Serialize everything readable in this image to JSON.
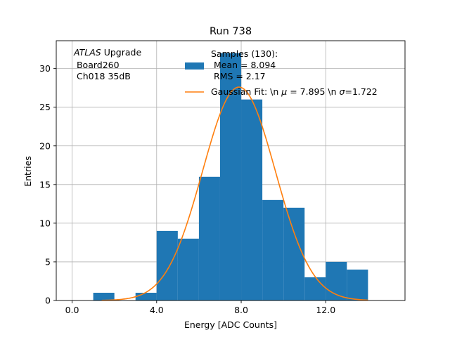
{
  "chart_data": {
    "type": "bar",
    "title": "Run 738",
    "xlabel": "Energy [ADC Counts]",
    "ylabel": "Entries",
    "xlim": [
      -0.75,
      15.75
    ],
    "ylim": [
      0,
      33.6
    ],
    "grid": true,
    "x_ticks": [
      0,
      4,
      8,
      12
    ],
    "x_tick_labels": [
      "0.0",
      "4.0",
      "8.0",
      "12.0"
    ],
    "y_ticks": [
      0,
      5,
      10,
      15,
      20,
      25,
      30
    ],
    "y_tick_labels": [
      "0",
      "5",
      "10",
      "15",
      "20",
      "25",
      "30"
    ],
    "annotation": {
      "italic": "ATLAS",
      "line1_rest": " Upgrade",
      "line2": " Board260",
      "line3": " Ch018 35dB"
    },
    "legend": {
      "placement": "top-right",
      "entries": [
        {
          "kind": "patch",
          "lines": [
            "Samples (130):",
            " Mean = 8.094",
            " RMS = 2.17"
          ]
        },
        {
          "kind": "line",
          "text_a": "Gaussian Fit: \\n ",
          "mu": "μ",
          "text_b": " = 7.895 \\n ",
          "sigma": "σ",
          "text_c": "=1.722"
        }
      ]
    },
    "bins": {
      "edges": [
        1,
        2,
        3,
        4,
        5,
        6,
        7,
        8,
        9,
        10,
        11,
        12,
        13,
        14
      ],
      "counts": [
        1,
        0,
        1,
        9,
        8,
        16,
        32,
        26,
        13,
        12,
        3,
        5,
        4
      ]
    },
    "fit": {
      "mu": 7.895,
      "sigma": 1.722,
      "amplitude": 27.6,
      "x_range": [
        1.4,
        14
      ]
    },
    "colors": {
      "bars": "#1f77b4",
      "fit": "#ff7f0e",
      "grid": "#b0b0b0"
    }
  }
}
